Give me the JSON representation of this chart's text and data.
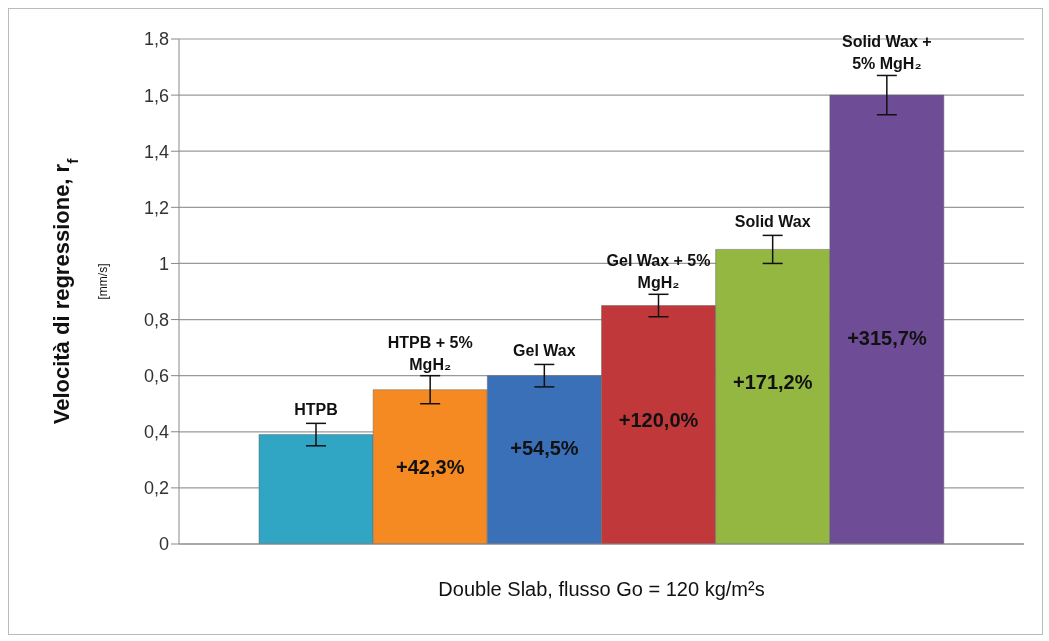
{
  "chart_data": {
    "type": "bar",
    "xlabel": "Double Slab, flusso Go = 120 kg/m²s",
    "ylabel": "Velocità di regressione, r$_{f}$\n[mm/s]",
    "categories": [
      "HTPB",
      "HTPB + 5% MgH₂",
      "Gel Wax",
      "Gel Wax + 5% MgH₂",
      "Solid Wax",
      "Solid Wax + 5% MgH₂"
    ],
    "values": [
      0.39,
      0.55,
      0.6,
      0.85,
      1.05,
      1.6
    ],
    "errors": [
      0.04,
      0.05,
      0.04,
      0.04,
      0.05,
      0.07
    ],
    "colors": [
      "#31a5c4",
      "#f58a22",
      "#3a70b8",
      "#c0383a",
      "#93b740",
      "#6e4c96"
    ],
    "ylim": [
      0,
      1.8
    ],
    "yticks": [
      {
        "value": 0,
        "label": "0"
      },
      {
        "value": 0.2,
        "label": "0,2"
      },
      {
        "value": 0.4,
        "label": "0,4"
      },
      {
        "value": 0.6,
        "label": "0,6"
      },
      {
        "value": 0.8,
        "label": "0,8"
      },
      {
        "value": 1,
        "label": "1"
      },
      {
        "value": 1.2,
        "label": "1,2"
      },
      {
        "value": 1.4,
        "label": "1,4"
      },
      {
        "value": 1.6,
        "label": "1,6"
      },
      {
        "value": 1.8,
        "label": "1,8"
      }
    ],
    "grid": "y",
    "tick_labels": "y",
    "annotations": [
      "+42,3%",
      "+54,5%",
      "+120,0%",
      "+171,2%",
      "+315,7%"
    ]
  }
}
